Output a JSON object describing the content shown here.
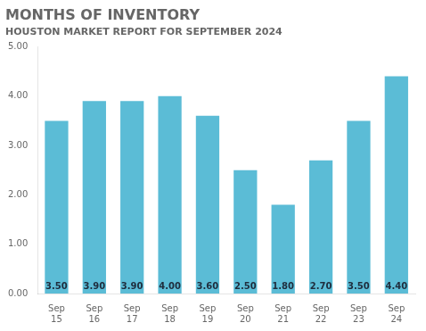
{
  "chart_data": {
    "type": "bar",
    "title": "MONTHS OF INVENTORY",
    "subtitle": "HOUSTON MARKET REPORT FOR SEPTEMBER 2024",
    "categories": [
      "Sep\n15",
      "Sep\n16",
      "Sep\n17",
      "Sep\n18",
      "Sep\n19",
      "Sep\n20",
      "Sep\n21",
      "Sep\n22",
      "Sep\n23",
      "Sep\n24"
    ],
    "values": [
      3.5,
      3.9,
      3.9,
      4.0,
      3.6,
      2.5,
      1.8,
      2.7,
      3.5,
      4.4
    ],
    "value_labels": [
      "3.50",
      "3.90",
      "3.90",
      "4.00",
      "3.60",
      "2.50",
      "1.80",
      "2.70",
      "3.50",
      "4.40"
    ],
    "data_labels": true,
    "color": "#5bbcd6",
    "ylim": [
      0,
      5.0
    ],
    "yticks": [
      {
        "value": 0,
        "label": "0.00"
      },
      {
        "value": 1,
        "label": "1.00"
      },
      {
        "value": 2,
        "label": "2.00"
      },
      {
        "value": 3,
        "label": "3.00"
      },
      {
        "value": 4,
        "label": "4.00"
      },
      {
        "value": 5,
        "label": "5.00"
      }
    ],
    "grid": false
  }
}
